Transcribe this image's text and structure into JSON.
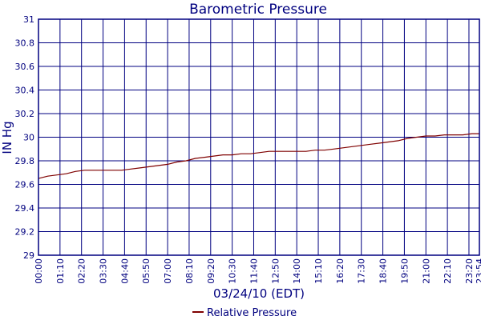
{
  "chart_data": {
    "type": "line",
    "title": "Barometric Pressure",
    "xlabel": "03/24/10 (EDT)",
    "ylabel": "IN Hg",
    "ylim": [
      29,
      31
    ],
    "yticks": [
      "29",
      "29.2",
      "29.4",
      "29.6",
      "29.8",
      "30",
      "30.2",
      "30.4",
      "30.6",
      "30.8",
      "31"
    ],
    "xticks": [
      "00:00",
      "01:10",
      "02:20",
      "03:30",
      "04:40",
      "05:50",
      "07:00",
      "08:10",
      "09:20",
      "10:30",
      "11:40",
      "12:50",
      "14:00",
      "15:10",
      "16:20",
      "17:30",
      "18:40",
      "19:50",
      "21:00",
      "22:10",
      "23:20",
      "23:54"
    ],
    "grid": true,
    "legend_position": "bottom",
    "colors": {
      "line": "#7f0000",
      "grid": "#000080",
      "text": "#00007f"
    },
    "series": [
      {
        "name": "Relative Pressure",
        "x": [
          "00:00",
          "00:30",
          "01:00",
          "01:30",
          "02:00",
          "02:30",
          "03:00",
          "03:30",
          "04:00",
          "04:30",
          "05:00",
          "05:30",
          "06:00",
          "06:30",
          "07:00",
          "07:30",
          "08:00",
          "08:30",
          "09:00",
          "09:30",
          "10:00",
          "10:30",
          "11:00",
          "11:30",
          "12:00",
          "12:30",
          "13:00",
          "13:30",
          "14:00",
          "14:30",
          "15:00",
          "15:30",
          "16:00",
          "16:30",
          "17:00",
          "17:30",
          "18:00",
          "18:30",
          "19:00",
          "19:30",
          "20:00",
          "20:30",
          "21:00",
          "21:30",
          "22:00",
          "22:30",
          "23:00",
          "23:30",
          "23:54"
        ],
        "values": [
          29.65,
          29.67,
          29.68,
          29.69,
          29.71,
          29.72,
          29.72,
          29.72,
          29.72,
          29.72,
          29.73,
          29.74,
          29.75,
          29.76,
          29.77,
          29.79,
          29.8,
          29.82,
          29.83,
          29.84,
          29.85,
          29.85,
          29.86,
          29.86,
          29.87,
          29.88,
          29.88,
          29.88,
          29.88,
          29.88,
          29.89,
          29.89,
          29.9,
          29.91,
          29.92,
          29.93,
          29.94,
          29.95,
          29.96,
          29.97,
          29.99,
          30.0,
          30.01,
          30.01,
          30.02,
          30.02,
          30.02,
          30.03,
          30.03
        ]
      }
    ]
  }
}
